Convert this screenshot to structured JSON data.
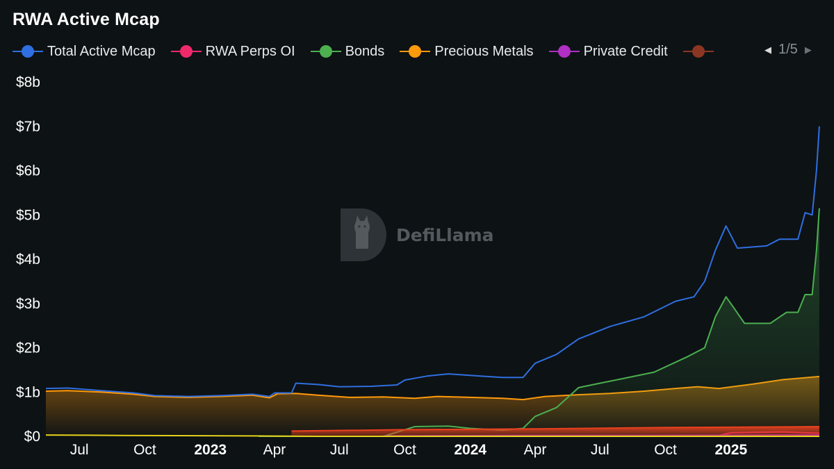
{
  "title": "RWA Active Mcap",
  "watermark": "DefiLlama",
  "legend": {
    "items": [
      {
        "label": "Total Active Mcap",
        "color": "#2f6fe0"
      },
      {
        "label": "RWA Perps OI",
        "color": "#ee2a6a"
      },
      {
        "label": "Bonds",
        "color": "#4caf50"
      },
      {
        "label": "Precious Metals",
        "color": "#ff9a0a"
      },
      {
        "label": "Private Credit",
        "color": "#b02fc4"
      },
      {
        "label": "",
        "color": "#8b3622"
      }
    ],
    "page": "1/5"
  },
  "chart_data": {
    "type": "area",
    "title": "RWA Active Mcap",
    "ylim": [
      0,
      8
    ],
    "y_ticks": [
      "$0",
      "$1b",
      "$2b",
      "$3b",
      "$4b",
      "$5b",
      "$6b",
      "$7b",
      "$8b"
    ],
    "x_range": [
      "2022-05-15",
      "2025-05-10"
    ],
    "x_ticks": [
      {
        "label": "Jul",
        "date": "2022-07-01",
        "bold": false
      },
      {
        "label": "Oct",
        "date": "2022-10-01",
        "bold": false
      },
      {
        "label": "2023",
        "date": "2023-01-01",
        "bold": true
      },
      {
        "label": "Apr",
        "date": "2023-04-01",
        "bold": false
      },
      {
        "label": "Jul",
        "date": "2023-07-01",
        "bold": false
      },
      {
        "label": "Oct",
        "date": "2023-10-01",
        "bold": false
      },
      {
        "label": "2024",
        "date": "2024-01-01",
        "bold": true
      },
      {
        "label": "Apr",
        "date": "2024-04-01",
        "bold": false
      },
      {
        "label": "Jul",
        "date": "2024-07-01",
        "bold": false
      },
      {
        "label": "Oct",
        "date": "2024-10-01",
        "bold": false
      },
      {
        "label": "2025",
        "date": "2025-01-01",
        "bold": true
      }
    ],
    "unit": "$b",
    "series": [
      {
        "name": "Precious Metals",
        "color": "#ff9a0a",
        "fill": true,
        "points": [
          [
            "2022-05-15",
            1.02
          ],
          [
            "2022-06-15",
            1.03
          ],
          [
            "2022-08-01",
            1.0
          ],
          [
            "2022-09-15",
            0.95
          ],
          [
            "2022-10-15",
            0.9
          ],
          [
            "2022-12-01",
            0.88
          ],
          [
            "2023-01-15",
            0.9
          ],
          [
            "2023-03-01",
            0.93
          ],
          [
            "2023-03-25",
            0.87
          ],
          [
            "2023-04-05",
            0.96
          ],
          [
            "2023-05-01",
            0.97
          ],
          [
            "2023-06-01",
            0.93
          ],
          [
            "2023-07-15",
            0.88
          ],
          [
            "2023-09-01",
            0.89
          ],
          [
            "2023-10-15",
            0.86
          ],
          [
            "2023-11-15",
            0.9
          ],
          [
            "2024-01-01",
            0.88
          ],
          [
            "2024-02-15",
            0.86
          ],
          [
            "2024-03-15",
            0.83
          ],
          [
            "2024-04-15",
            0.9
          ],
          [
            "2024-06-01",
            0.94
          ],
          [
            "2024-07-15",
            0.97
          ],
          [
            "2024-09-01",
            1.02
          ],
          [
            "2024-10-15",
            1.08
          ],
          [
            "2024-11-15",
            1.12
          ],
          [
            "2024-12-15",
            1.08
          ],
          [
            "2025-02-01",
            1.18
          ],
          [
            "2025-03-15",
            1.28
          ],
          [
            "2025-05-05",
            1.35
          ]
        ]
      },
      {
        "name": "Bonds",
        "color": "#4caf50",
        "fill": true,
        "points": [
          [
            "2023-03-10",
            0.0
          ],
          [
            "2023-09-01",
            0.0
          ],
          [
            "2023-09-25",
            0.12
          ],
          [
            "2023-10-15",
            0.22
          ],
          [
            "2023-12-01",
            0.23
          ],
          [
            "2024-01-01",
            0.18
          ],
          [
            "2024-02-15",
            0.14
          ],
          [
            "2024-03-15",
            0.18
          ],
          [
            "2024-04-01",
            0.45
          ],
          [
            "2024-05-01",
            0.65
          ],
          [
            "2024-06-01",
            1.1
          ],
          [
            "2024-07-01",
            1.2
          ],
          [
            "2024-08-01",
            1.3
          ],
          [
            "2024-09-15",
            1.45
          ],
          [
            "2024-11-01",
            1.8
          ],
          [
            "2024-11-25",
            2.0
          ],
          [
            "2024-12-10",
            2.7
          ],
          [
            "2024-12-25",
            3.15
          ],
          [
            "2025-01-05",
            2.9
          ],
          [
            "2025-01-20",
            2.55
          ],
          [
            "2025-02-25",
            2.55
          ],
          [
            "2025-03-20",
            2.8
          ],
          [
            "2025-04-05",
            2.8
          ],
          [
            "2025-04-15",
            3.2
          ],
          [
            "2025-04-25",
            3.2
          ],
          [
            "2025-05-01",
            4.2
          ],
          [
            "2025-05-05",
            5.15
          ]
        ]
      },
      {
        "name": "Total Active Mcap",
        "color": "#2f6fe0",
        "fill": false,
        "points": [
          [
            "2022-05-15",
            1.08
          ],
          [
            "2022-06-15",
            1.09
          ],
          [
            "2022-08-01",
            1.03
          ],
          [
            "2022-09-15",
            0.98
          ],
          [
            "2022-10-15",
            0.92
          ],
          [
            "2022-12-01",
            0.9
          ],
          [
            "2023-01-15",
            0.92
          ],
          [
            "2023-03-01",
            0.95
          ],
          [
            "2023-03-25",
            0.9
          ],
          [
            "2023-04-01",
            0.98
          ],
          [
            "2023-04-25",
            0.98
          ],
          [
            "2023-05-01",
            1.2
          ],
          [
            "2023-06-01",
            1.17
          ],
          [
            "2023-07-01",
            1.12
          ],
          [
            "2023-08-15",
            1.13
          ],
          [
            "2023-09-20",
            1.16
          ],
          [
            "2023-10-01",
            1.27
          ],
          [
            "2023-11-01",
            1.36
          ],
          [
            "2023-12-01",
            1.41
          ],
          [
            "2024-01-15",
            1.36
          ],
          [
            "2024-02-15",
            1.33
          ],
          [
            "2024-03-15",
            1.33
          ],
          [
            "2024-04-01",
            1.65
          ],
          [
            "2024-05-01",
            1.85
          ],
          [
            "2024-06-01",
            2.2
          ],
          [
            "2024-07-15",
            2.48
          ],
          [
            "2024-09-01",
            2.7
          ],
          [
            "2024-10-15",
            3.05
          ],
          [
            "2024-11-10",
            3.15
          ],
          [
            "2024-11-25",
            3.5
          ],
          [
            "2024-12-10",
            4.2
          ],
          [
            "2024-12-25",
            4.75
          ],
          [
            "2025-01-10",
            4.25
          ],
          [
            "2025-02-20",
            4.3
          ],
          [
            "2025-03-10",
            4.45
          ],
          [
            "2025-04-05",
            4.45
          ],
          [
            "2025-04-15",
            5.05
          ],
          [
            "2025-04-25",
            5.0
          ],
          [
            "2025-05-01",
            6.0
          ],
          [
            "2025-05-05",
            7.0
          ]
        ]
      },
      {
        "name": "RWA Perps OI",
        "color": "#ee2a6a",
        "fill": false,
        "points": [
          [
            "2024-12-15",
            0.02
          ],
          [
            "2025-01-01",
            0.08
          ],
          [
            "2025-02-01",
            0.09
          ],
          [
            "2025-03-15",
            0.1
          ],
          [
            "2025-04-15",
            0.08
          ],
          [
            "2025-05-05",
            0.07
          ]
        ]
      },
      {
        "name": "Private Credit",
        "color": "#b02fc4",
        "fill": false,
        "points": [
          [
            "2023-09-01",
            0.01
          ],
          [
            "2024-03-01",
            0.02
          ],
          [
            "2024-09-01",
            0.02
          ],
          [
            "2025-05-05",
            0.03
          ]
        ]
      },
      {
        "name": "",
        "color": "#e8401f",
        "fill": true,
        "points": [
          [
            "2023-04-25",
            0.12
          ],
          [
            "2023-10-01",
            0.15
          ],
          [
            "2024-04-01",
            0.17
          ],
          [
            "2024-10-01",
            0.2
          ],
          [
            "2025-05-05",
            0.22
          ]
        ]
      },
      {
        "name": "",
        "color": "#e6d21a",
        "fill": false,
        "points": [
          [
            "2022-05-15",
            0.03
          ],
          [
            "2022-09-01",
            0.02
          ],
          [
            "2023-03-01",
            0.01
          ],
          [
            "2023-06-01",
            0.0
          ],
          [
            "2024-01-01",
            0.0
          ],
          [
            "2025-05-05",
            0.0
          ]
        ]
      }
    ]
  }
}
